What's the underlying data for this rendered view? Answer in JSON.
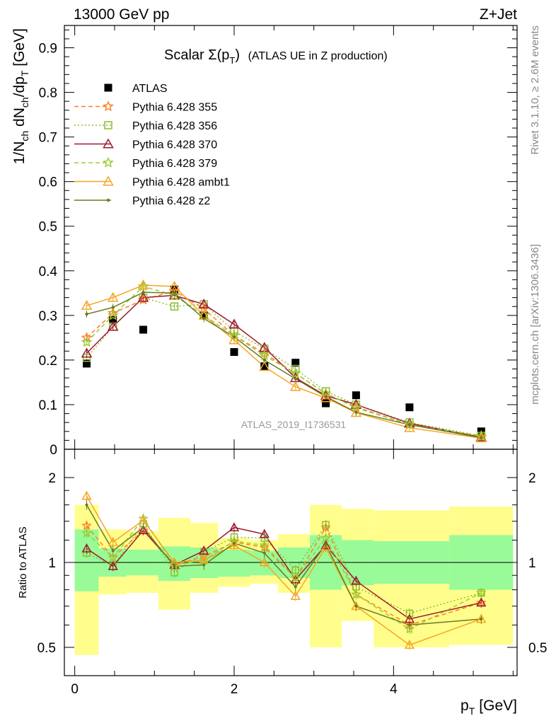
{
  "header": {
    "left": "13000 GeV pp",
    "right": "Z+Jet"
  },
  "side_text": {
    "top": "Rivet 3.1.10, ≥ 2.6M events",
    "bottom": "mcplots.cern.ch [arXiv:1306.3436]"
  },
  "watermark": "ATLAS_2019_I1736531",
  "colors": {
    "atlas": "#000000",
    "band_inner": "#98fb98",
    "band_outer": "#fffe8c"
  },
  "chart_data": [
    {
      "type": "line",
      "panel": "main",
      "title_main": "Scalar Σ(p",
      "title_sub": "T",
      "title_close": ")",
      "title_rest": "(ATLAS UE in Z production)",
      "ylabel_parts": [
        "1/N",
        "ch",
        " dN",
        "ch",
        "/dp",
        "T",
        " [GeV]"
      ],
      "ylim": [
        0,
        0.95
      ],
      "xlim": [
        -0.13,
        5.55
      ],
      "yticks": [
        "0",
        "0.1",
        "0.2",
        "0.3",
        "0.4",
        "0.5",
        "0.6",
        "0.7",
        "0.8",
        "0.9"
      ],
      "legend_position": "top-left",
      "x": [
        0.15,
        0.48,
        0.86,
        1.25,
        1.62,
        2.0,
        2.38,
        2.77,
        3.15,
        3.53,
        4.2,
        5.1
      ],
      "bins": [
        [
          0.0,
          0.3
        ],
        [
          0.3,
          0.65
        ],
        [
          0.65,
          1.05
        ],
        [
          1.05,
          1.45
        ],
        [
          1.45,
          1.8
        ],
        [
          1.8,
          2.2
        ],
        [
          2.2,
          2.55
        ],
        [
          2.55,
          2.95
        ],
        [
          2.95,
          3.35
        ],
        [
          3.35,
          3.75
        ],
        [
          3.75,
          4.7
        ],
        [
          4.7,
          5.5
        ]
      ],
      "series": [
        {
          "name": "ATLAS",
          "color": "#000000",
          "marker": "square",
          "dash": "none",
          "values": [
            0.192,
            0.29,
            0.268,
            0.358,
            0.3,
            0.218,
            0.186,
            0.194,
            0.103,
            0.121,
            0.094,
            0.04
          ]
        },
        {
          "name": "Pythia 6.428 355",
          "color": "#ff7f27",
          "marker": "star",
          "dash": "6,4",
          "values": [
            0.25,
            0.305,
            0.335,
            0.355,
            0.315,
            0.255,
            0.215,
            0.17,
            0.125,
            0.095,
            0.055,
            0.027
          ]
        },
        {
          "name": "Pythia 6.428 356",
          "color": "#8fbc2f",
          "marker": "open-square",
          "dash": "2,3",
          "values": [
            0.205,
            0.275,
            0.34,
            0.32,
            0.325,
            0.265,
            0.225,
            0.18,
            0.13,
            0.1,
            0.06,
            0.03
          ]
        },
        {
          "name": "Pythia 6.428 370",
          "color": "#9b1b30",
          "marker": "open-triangle",
          "dash": "none",
          "values": [
            0.215,
            0.275,
            0.34,
            0.345,
            0.325,
            0.28,
            0.228,
            0.16,
            0.12,
            0.1,
            0.058,
            0.027
          ]
        },
        {
          "name": "Pythia 6.428 379",
          "color": "#9acd32",
          "marker": "star",
          "dash": "6,4",
          "values": [
            0.24,
            0.3,
            0.365,
            0.345,
            0.3,
            0.255,
            0.21,
            0.17,
            0.125,
            0.093,
            0.055,
            0.03
          ]
        },
        {
          "name": "Pythia 6.428 ambt1",
          "color": "#f5a623",
          "marker": "open-triangle",
          "dash": "none",
          "values": [
            0.322,
            0.34,
            0.368,
            0.365,
            0.3,
            0.245,
            0.185,
            0.14,
            0.115,
            0.082,
            0.048,
            0.025
          ]
        },
        {
          "name": "Pythia 6.428 z2",
          "color": "#6b7a1f",
          "marker": "dot",
          "dash": "none",
          "values": [
            0.303,
            0.318,
            0.352,
            0.35,
            0.293,
            0.252,
            0.2,
            0.158,
            0.118,
            0.083,
            0.055,
            0.026
          ]
        }
      ]
    },
    {
      "type": "line",
      "panel": "ratio",
      "ylabel": "Ratio to ATLAS",
      "ylim": [
        0.42,
        2.3
      ],
      "yticks": [
        "0.5",
        "1",
        "2"
      ],
      "xticks": [
        "0",
        "2",
        "4"
      ],
      "xlabel_main": "p",
      "xlabel_sub": "T",
      "xlabel_unit": "[GeV]",
      "band_inner": [
        [
          0.79,
          1.31
        ],
        [
          0.89,
          1.12
        ],
        [
          0.9,
          1.11
        ],
        [
          0.86,
          1.14
        ],
        [
          0.88,
          1.13
        ],
        [
          0.89,
          1.11
        ],
        [
          0.9,
          1.1
        ],
        [
          0.88,
          1.13
        ],
        [
          0.8,
          1.25
        ],
        [
          0.83,
          1.2
        ],
        [
          0.84,
          1.19
        ],
        [
          0.8,
          1.25
        ]
      ],
      "band_outer": [
        [
          0.47,
          1.6
        ],
        [
          0.77,
          1.31
        ],
        [
          0.78,
          1.29
        ],
        [
          0.68,
          1.44
        ],
        [
          0.78,
          1.38
        ],
        [
          0.82,
          1.22
        ],
        [
          0.84,
          1.2
        ],
        [
          0.78,
          1.26
        ],
        [
          0.5,
          1.6
        ],
        [
          0.62,
          1.55
        ],
        [
          0.5,
          1.53
        ],
        [
          0.51,
          1.58
        ]
      ],
      "series": [
        {
          "name": "Pythia 6.428 355",
          "values": [
            1.35,
            1.04,
            1.3,
            0.98,
            1.05,
            1.18,
            1.13,
            0.88,
            1.33,
            0.77,
            0.6,
            0.72
          ]
        },
        {
          "name": "Pythia 6.428 356",
          "values": [
            1.08,
            0.97,
            1.37,
            0.92,
            1.09,
            1.23,
            1.22,
            0.94,
            1.36,
            0.82,
            0.66,
            0.78
          ]
        },
        {
          "name": "Pythia 6.428 370",
          "values": [
            1.12,
            0.97,
            1.3,
            0.98,
            1.1,
            1.33,
            1.26,
            0.87,
            1.15,
            0.86,
            0.63,
            0.72
          ]
        },
        {
          "name": "Pythia 6.428 379",
          "values": [
            1.27,
            1.04,
            1.43,
            0.98,
            1.02,
            1.19,
            1.15,
            0.88,
            1.22,
            0.77,
            0.58,
            0.78
          ]
        },
        {
          "name": "Pythia 6.428 ambt1",
          "values": [
            1.72,
            1.18,
            1.41,
            1.0,
            1.02,
            1.15,
            1.0,
            0.76,
            1.13,
            0.7,
            0.51,
            0.63
          ]
        },
        {
          "name": "Pythia 6.428 z2",
          "values": [
            1.6,
            1.1,
            1.33,
            0.97,
            0.98,
            1.17,
            1.08,
            0.82,
            1.16,
            0.7,
            0.6,
            0.63
          ]
        }
      ]
    }
  ]
}
